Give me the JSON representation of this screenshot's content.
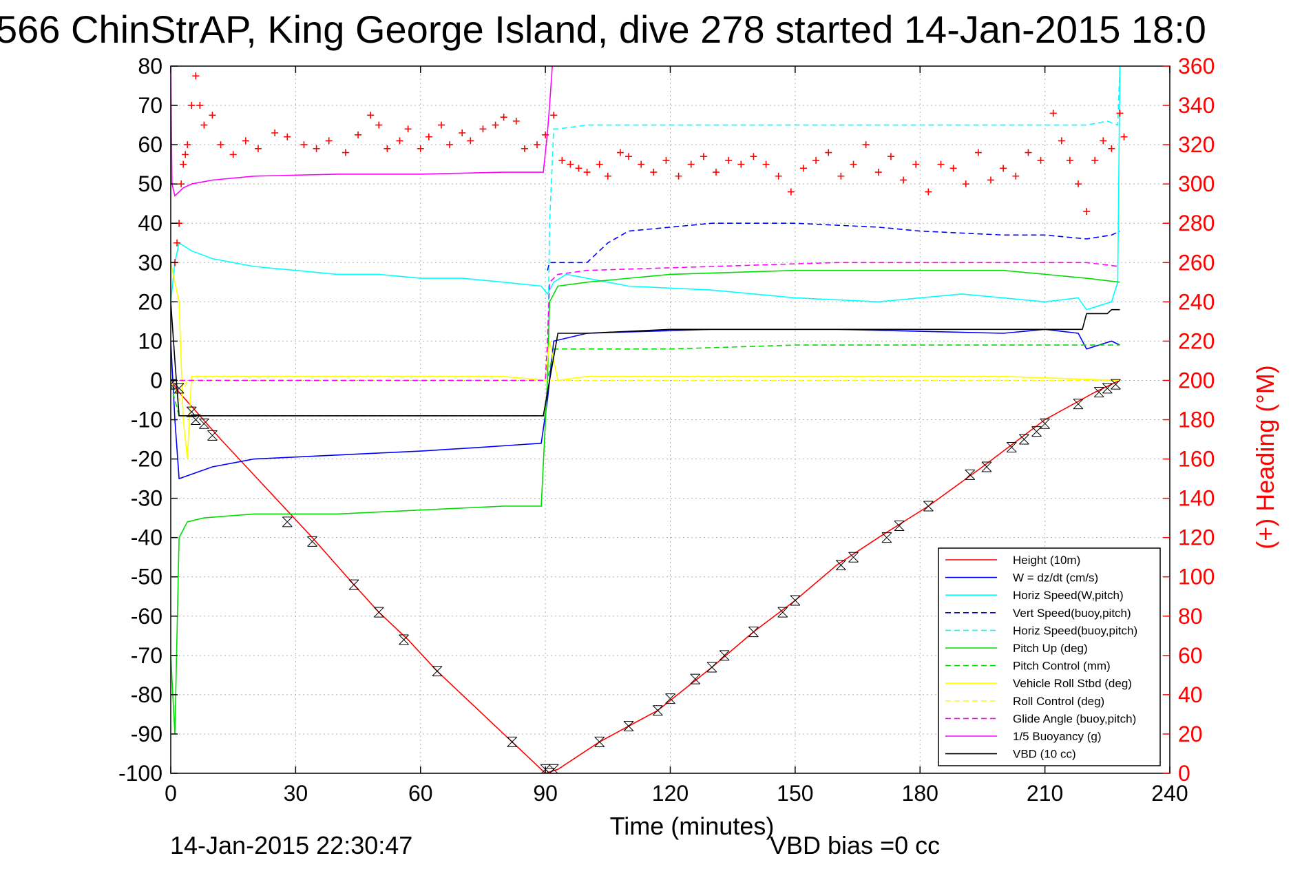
{
  "title": "566 ChinStrAP, King George Island, dive 278 started 14-Jan-2015 18:0",
  "footer": {
    "timestamp": "14-Jan-2015 22:30:47",
    "vbd_bias": "VBD bias =0 cc"
  },
  "chart_data": {
    "type": "line",
    "xlabel": "Time (minutes)",
    "ylabel_right": "(+) Heading (°M)",
    "xlim": [
      0,
      240
    ],
    "ylim": [
      -100,
      80
    ],
    "ylim_right": [
      0,
      360
    ],
    "xticks": [
      "0",
      "30",
      "60",
      "90",
      "120",
      "150",
      "180",
      "210",
      "240"
    ],
    "yticks": [
      "80",
      "70",
      "60",
      "50",
      "40",
      "30",
      "20",
      "10",
      "0",
      "-10",
      "-20",
      "-30",
      "-40",
      "-50",
      "-60",
      "-70",
      "-80",
      "-90",
      "-100"
    ],
    "yticks_right": [
      "360",
      "340",
      "320",
      "300",
      "280",
      "260",
      "240",
      "220",
      "200",
      "180",
      "160",
      "140",
      "120",
      "100",
      "80",
      "60",
      "40",
      "20",
      "0"
    ],
    "grid": true,
    "legend_position": "bottom-right",
    "series": [
      {
        "name": "Height (10m)",
        "color": "#ff0000",
        "style": "solid",
        "x": [
          0,
          2,
          12,
          34,
          44,
          50,
          57,
          64,
          82,
          90,
          93,
          103,
          110,
          117,
          130,
          140,
          150,
          160,
          170,
          182,
          195,
          210,
          222,
          228
        ],
        "y": [
          0,
          -3,
          -15,
          -40,
          -52,
          -59,
          -66,
          -74,
          -92,
          -100,
          -99,
          -92,
          -88,
          -84,
          -73,
          -64,
          -56,
          -47,
          -40,
          -32,
          -22,
          -10,
          -3,
          0
        ]
      },
      {
        "name": "W = dz/dt (cm/s)",
        "color": "#0000ff",
        "style": "solid",
        "x": [
          0,
          1,
          2,
          10,
          20,
          40,
          60,
          75,
          89,
          90.5,
          92,
          100,
          130,
          160,
          200,
          210,
          218,
          220,
          226,
          228
        ],
        "y": [
          10,
          -10,
          -25,
          -22,
          -20,
          -19,
          -18,
          -17,
          -16,
          -5,
          10,
          12,
          13,
          13,
          12,
          13,
          12,
          8,
          10,
          9
        ]
      },
      {
        "name": "Horiz Speed(W,pitch)",
        "color": "#00ffff",
        "style": "solid",
        "x": [
          0,
          1,
          2,
          5,
          10,
          20,
          30,
          40,
          50,
          60,
          70,
          80,
          89,
          90.5,
          92,
          95,
          110,
          130,
          150,
          170,
          190,
          210,
          218,
          220,
          226,
          227.5,
          228
        ],
        "y": [
          20,
          30,
          35,
          33,
          31,
          29,
          28,
          27,
          27,
          26,
          26,
          25,
          24,
          22,
          25,
          27,
          24,
          23,
          21,
          20,
          22,
          20,
          21,
          18,
          20,
          25,
          80
        ]
      },
      {
        "name": "Vert Speed(buoy,pitch)",
        "color": "#0000ff",
        "style": "dashed",
        "x": [
          90.5,
          91,
          95,
          100,
          103,
          105,
          110,
          120,
          130,
          150,
          170,
          180,
          200,
          210,
          220,
          226,
          228
        ],
        "y": [
          28,
          30,
          30,
          30,
          33,
          35,
          38,
          39,
          40,
          40,
          39,
          38,
          37,
          37,
          36,
          37,
          38
        ]
      },
      {
        "name": "Horiz Speed(buoy,pitch)",
        "color": "#00ffff",
        "style": "dashed",
        "x": [
          90.5,
          91,
          92,
          93,
          100,
          120,
          150,
          180,
          200,
          220,
          225,
          227.5,
          228
        ],
        "y": [
          0,
          40,
          64,
          64,
          65,
          65,
          65,
          65,
          65,
          65,
          66,
          65,
          80
        ]
      },
      {
        "name": "Pitch Up (deg)",
        "color": "#00dd00",
        "style": "solid",
        "x": [
          0,
          1,
          2,
          4,
          8,
          20,
          40,
          60,
          80,
          89,
          90.5,
          91,
          93,
          100,
          120,
          150,
          180,
          200,
          220,
          228
        ],
        "y": [
          -70,
          -90,
          -40,
          -36,
          -35,
          -34,
          -34,
          -33,
          -32,
          -32,
          0,
          20,
          24,
          25,
          27,
          28,
          28,
          28,
          26,
          25
        ]
      },
      {
        "name": "Pitch Control (mm)",
        "color": "#00dd00",
        "style": "dashed",
        "x": [
          0,
          2,
          90,
          90.5,
          92,
          120,
          150,
          180,
          210,
          228
        ],
        "y": [
          -1,
          -9,
          -9,
          0,
          8,
          8,
          9,
          9,
          9,
          9
        ]
      },
      {
        "name": "Vehicle Roll Stbd (deg)",
        "color": "#ffff00",
        "style": "solid",
        "x": [
          0,
          2,
          3,
          4,
          5,
          20,
          40,
          60,
          80,
          90,
          91,
          93,
          100,
          150,
          200,
          228
        ],
        "y": [
          30,
          20,
          -10,
          -20,
          1,
          1,
          1,
          1,
          1,
          0,
          10,
          0,
          1,
          1,
          1,
          0
        ]
      },
      {
        "name": "Roll Control (deg)",
        "color": "#ffff00",
        "style": "dashed",
        "x": [
          0,
          2,
          4,
          50,
          90,
          92,
          150,
          210,
          228
        ],
        "y": [
          0,
          -5,
          0,
          0,
          0,
          0,
          0,
          0,
          0
        ]
      },
      {
        "name": "Glide Angle (buoy,pitch)",
        "color": "#ff00ff",
        "style": "dashed",
        "x": [
          0,
          90,
          90.5,
          91,
          93,
          100,
          130,
          160,
          190,
          220,
          228
        ],
        "y": [
          0,
          0,
          10,
          25,
          27,
          28,
          29,
          30,
          30,
          30,
          29
        ]
      },
      {
        "name": "1/5 Buoyancy (g)",
        "color": "#ff00ff",
        "style": "solid",
        "x": [
          0,
          0.3,
          1,
          2,
          3,
          5,
          10,
          20,
          40,
          60,
          80,
          89.5,
          90.5,
          91,
          92
        ],
        "y": [
          80,
          50,
          47,
          48,
          49,
          50,
          51,
          52,
          52.5,
          52.5,
          53,
          53,
          63,
          70,
          85
        ]
      },
      {
        "name": "VBD (10 cc)",
        "color": "#000000",
        "style": "solid",
        "x": [
          0,
          1,
          2,
          5,
          20,
          40,
          60,
          80,
          89.5,
          91,
          93,
          100,
          120,
          150,
          180,
          200,
          219,
          220,
          225,
          226,
          228
        ],
        "y": [
          20,
          5,
          -9,
          -9,
          -9,
          -9,
          -9,
          -9,
          -9,
          0,
          12,
          12,
          13,
          13,
          13,
          13,
          13,
          17,
          17,
          18,
          18
        ]
      }
    ],
    "heading_markers": {
      "name": "(+) Heading",
      "color": "#ff0000",
      "x": [
        1,
        1.5,
        2,
        2.5,
        3,
        3.5,
        4,
        5,
        6,
        7,
        8,
        10,
        12,
        15,
        18,
        21,
        25,
        28,
        32,
        35,
        38,
        42,
        45,
        48,
        50,
        52,
        55,
        57,
        60,
        62,
        65,
        67,
        70,
        72,
        75,
        78,
        80,
        83,
        85,
        88,
        90,
        92,
        94,
        96,
        98,
        100,
        103,
        105,
        108,
        110,
        113,
        116,
        119,
        122,
        125,
        128,
        131,
        134,
        137,
        140,
        143,
        146,
        149,
        152,
        155,
        158,
        161,
        164,
        167,
        170,
        173,
        176,
        179,
        182,
        185,
        188,
        191,
        194,
        197,
        200,
        203,
        206,
        209,
        212,
        214,
        216,
        218,
        220,
        222,
        224,
        226,
        228,
        229
      ],
      "y": [
        260,
        270,
        280,
        300,
        310,
        315,
        320,
        340,
        355,
        340,
        330,
        335,
        320,
        315,
        322,
        318,
        326,
        324,
        320,
        318,
        322,
        316,
        325,
        335,
        330,
        318,
        322,
        328,
        318,
        324,
        330,
        320,
        326,
        322,
        328,
        330,
        334,
        332,
        318,
        320,
        325,
        335,
        312,
        310,
        308,
        306,
        310,
        304,
        316,
        314,
        310,
        306,
        312,
        304,
        310,
        314,
        306,
        312,
        310,
        314,
        310,
        304,
        296,
        308,
        312,
        316,
        304,
        310,
        320,
        306,
        314,
        302,
        310,
        296,
        310,
        308,
        300,
        316,
        302,
        308,
        304,
        316,
        312,
        336,
        322,
        312,
        300,
        286,
        312,
        322,
        318,
        336,
        324
      ]
    },
    "waypoint_markers": {
      "x": [
        0,
        2,
        5,
        6,
        8,
        10,
        28,
        34,
        44,
        50,
        56,
        64,
        82,
        90,
        91,
        92,
        103,
        110,
        117,
        120,
        126,
        130,
        133,
        140,
        147,
        150,
        161,
        164,
        172,
        175,
        182,
        192,
        196,
        202,
        205,
        208,
        210,
        218,
        223,
        225,
        227
      ],
      "y": [
        -1,
        -2,
        -8,
        -10,
        -11,
        -14,
        -36,
        -41,
        -52,
        -59,
        -66,
        -74,
        -92,
        -99,
        -100,
        -99,
        -92,
        -88,
        -84,
        -81,
        -76,
        -73,
        -70,
        -64,
        -59,
        -56,
        -47,
        -45,
        -40,
        -37,
        -32,
        -24,
        -22,
        -17,
        -15,
        -13,
        -11,
        -6,
        -3,
        -2,
        -1
      ]
    }
  }
}
